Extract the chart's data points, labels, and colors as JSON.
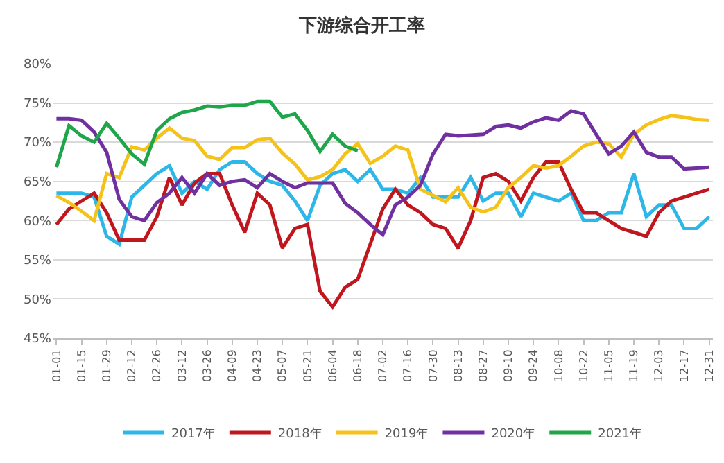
{
  "chart_data": {
    "type": "line",
    "title": "下游综合开工率",
    "categories": [
      "01-01",
      null,
      "01-15",
      null,
      "01-29",
      null,
      "02-12",
      null,
      "02-26",
      null,
      "03-12",
      null,
      "03-26",
      null,
      "04-09",
      null,
      "04-23",
      null,
      "05-07",
      null,
      "05-21",
      null,
      "06-04",
      null,
      "06-18",
      null,
      "07-02",
      null,
      "07-16",
      null,
      "07-30",
      null,
      "08-13",
      null,
      "08-27",
      null,
      "09-10",
      null,
      "09-24",
      null,
      "10-08",
      null,
      "10-22",
      null,
      "11-05",
      null,
      "11-19",
      null,
      "12-03",
      null,
      "12-17",
      null,
      "12-31"
    ],
    "series": [
      {
        "name": "2017年",
        "color": "#2db7e8",
        "values": [
          63.5,
          63.5,
          63.5,
          63,
          58,
          57,
          63,
          64.5,
          66,
          67,
          63.5,
          65,
          64,
          66.5,
          67.5,
          67.5,
          66,
          65,
          64.5,
          62.5,
          60,
          64.5,
          66,
          66.5,
          65,
          66.5,
          64,
          64,
          63.5,
          65.5,
          63,
          63,
          63,
          65.5,
          62.5,
          63.5,
          63.5,
          60.5,
          63.5,
          63,
          62.5,
          63.5,
          60,
          60,
          61,
          61,
          66,
          60.5,
          62,
          62,
          59,
          59,
          60.5
        ]
      },
      {
        "name": "2018年",
        "color": "#c0161e",
        "values": [
          59.5,
          61.5,
          62.5,
          63.5,
          61,
          57.5,
          57.5,
          57.5,
          60.5,
          65.5,
          62,
          64.8,
          66,
          66,
          62,
          58.5,
          63.5,
          62,
          56.5,
          59,
          59.5,
          51,
          49,
          51.5,
          52.5,
          57,
          61.5,
          64,
          62,
          61,
          59.5,
          59,
          56.5,
          60,
          65.5,
          66,
          65,
          62.5,
          65.5,
          67.5,
          67.5,
          64,
          61,
          61,
          60,
          59,
          58.5,
          58,
          61,
          62.5,
          63,
          63.5,
          64
        ]
      },
      {
        "name": "2019年",
        "color": "#f5c21a",
        "values": [
          63.2,
          62.3,
          61.2,
          60,
          66,
          65.5,
          69.4,
          69,
          70.5,
          71.8,
          70.5,
          70.2,
          68.2,
          67.8,
          69.3,
          69.3,
          70.3,
          70.5,
          68.6,
          67.2,
          65.2,
          65.6,
          66.5,
          68.5,
          69.8,
          67.3,
          68.2,
          69.5,
          69,
          64,
          63.2,
          62.4,
          64.2,
          61.7,
          61.1,
          61.7,
          64.2,
          65.5,
          67,
          66.7,
          67,
          68.2,
          69.5,
          70,
          69.8,
          68.1,
          71,
          72.2,
          72.9,
          73.4,
          73.2,
          72.9,
          72.8
        ]
      },
      {
        "name": "2020年",
        "color": "#7030a0",
        "values": [
          73,
          73,
          72.8,
          71.3,
          68.7,
          62.7,
          60.5,
          60,
          62.3,
          63.5,
          65.5,
          63.5,
          66,
          64.5,
          65,
          65.2,
          64.2,
          66,
          65,
          64.2,
          64.8,
          64.8,
          64.8,
          62.2,
          61,
          59.5,
          58.2,
          62,
          63,
          64.5,
          68.5,
          71,
          70.8,
          70.9,
          71,
          72,
          72.2,
          71.8,
          72.6,
          73.1,
          72.8,
          74,
          73.6,
          71,
          68.5,
          69.5,
          71.3,
          68.7,
          68.1,
          68.1,
          66.6,
          66.7,
          66.8
        ]
      },
      {
        "name": "2021年",
        "color": "#1fa64a",
        "values": [
          66.8,
          72.1,
          70.8,
          70,
          72.4,
          70.5,
          68.5,
          67.2,
          71.5,
          73,
          73.8,
          74.1,
          74.6,
          74.5,
          74.7,
          74.7,
          75.2,
          75.2,
          73.2,
          73.6,
          71.5,
          68.8,
          71,
          69.5,
          68.9,
          null,
          null,
          null,
          null,
          null,
          null,
          null,
          null,
          null,
          null,
          null,
          null,
          null,
          null,
          null,
          null,
          null,
          null,
          null,
          null,
          null,
          null,
          null,
          null,
          null,
          null,
          null,
          null
        ]
      }
    ],
    "ylim": [
      45,
      80
    ],
    "yticks": [
      {
        "value": 45,
        "label": "45%"
      },
      {
        "value": 50,
        "label": "50%"
      },
      {
        "value": 55,
        "label": "55%"
      },
      {
        "value": 60,
        "label": "60%"
      },
      {
        "value": 65,
        "label": "65%"
      },
      {
        "value": 70,
        "label": "70%"
      },
      {
        "value": 75,
        "label": "75%"
      },
      {
        "value": 80,
        "label": "80%"
      }
    ],
    "grid": "y",
    "legend": "bottom",
    "marker": "none",
    "line_style": "solid"
  }
}
